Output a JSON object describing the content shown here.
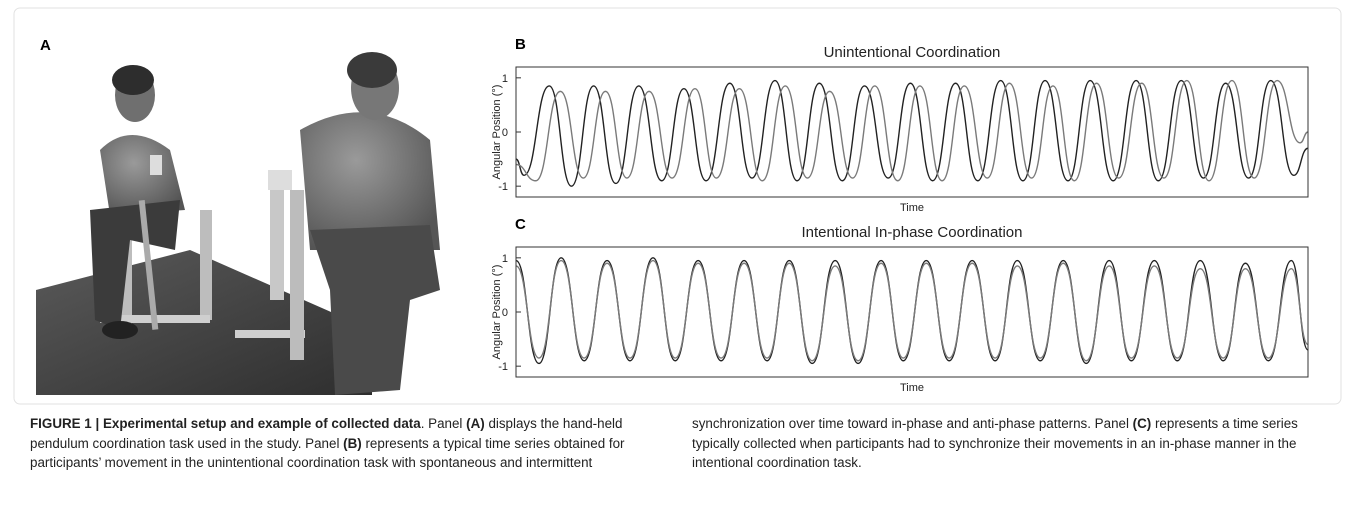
{
  "panel_a": {
    "label": "A"
  },
  "chart_data": [
    {
      "type": "line",
      "panel_label": "B",
      "title": "Unintentional Coordination",
      "xlabel": "Time",
      "ylabel": "Angular Position (°)",
      "xlim": [
        0,
        100
      ],
      "ylim": [
        -1.2,
        1.2
      ],
      "yticks": [
        1,
        0,
        -1
      ],
      "series": [
        {
          "color": "#222222",
          "x": [
            0,
            1,
            4.2,
            7,
            9.8,
            12.6,
            15.5,
            18.4,
            21.2,
            24,
            27,
            29.8,
            32.7,
            35.5,
            38.3,
            41.2,
            44,
            47,
            49.8,
            52.6,
            55.5,
            58.3,
            61.2,
            64,
            66.8,
            69.7,
            72.5,
            75.4,
            78.3,
            81.1,
            84,
            86.8,
            89.6,
            92.5,
            95.3,
            98.2,
            100
          ],
          "values": [
            -0.5,
            -0.8,
            0.85,
            -1.0,
            0.85,
            -0.95,
            0.85,
            -0.9,
            0.8,
            -0.9,
            0.9,
            -0.85,
            0.95,
            -0.9,
            0.9,
            -0.9,
            0.85,
            -0.85,
            0.9,
            -0.9,
            0.9,
            -0.9,
            0.95,
            -0.9,
            0.95,
            -0.9,
            0.95,
            -0.9,
            0.95,
            -0.9,
            0.95,
            -0.85,
            0.9,
            -0.85,
            0.95,
            -0.8,
            -0.3
          ]
        },
        {
          "color": "#7a7a7a",
          "x": [
            0,
            2.5,
            5.6,
            8.5,
            11.3,
            14,
            16.8,
            19.7,
            22.6,
            25.3,
            28.2,
            31.1,
            34,
            36.8,
            39.6,
            42.5,
            45.3,
            48.2,
            51,
            53.8,
            56.6,
            59.5,
            62.3,
            65.1,
            67.8,
            70.5,
            73.3,
            76.1,
            79,
            81.8,
            84.7,
            87.5,
            90.4,
            93.2,
            96.1,
            99,
            100
          ],
          "values": [
            -0.6,
            -0.9,
            0.75,
            -0.85,
            0.75,
            -0.85,
            0.75,
            -0.85,
            0.8,
            -0.85,
            0.8,
            -0.9,
            0.85,
            -0.85,
            0.75,
            -0.85,
            0.85,
            -0.9,
            0.85,
            -0.9,
            0.85,
            -0.85,
            0.9,
            -0.85,
            0.85,
            -0.9,
            0.9,
            -0.85,
            0.9,
            -0.85,
            0.95,
            -0.9,
            0.95,
            -0.85,
            0.95,
            -0.2,
            0.0
          ]
        }
      ]
    },
    {
      "type": "line",
      "panel_label": "C",
      "title": "Intentional In-phase Coordination",
      "xlabel": "Time",
      "ylabel": "Angular Position (°)",
      "xlim": [
        0,
        100
      ],
      "ylim": [
        -1.2,
        1.2
      ],
      "yticks": [
        1,
        0,
        -1
      ],
      "series": [
        {
          "color": "#222222",
          "x": [
            0,
            2.9,
            5.7,
            8.6,
            11.5,
            14.4,
            17.3,
            20.1,
            23,
            25.9,
            28.8,
            31.7,
            34.5,
            37.4,
            40.3,
            43.2,
            46.1,
            48.9,
            51.8,
            54.7,
            57.6,
            60.5,
            63.3,
            66.2,
            69.1,
            72,
            74.9,
            77.7,
            80.6,
            83.5,
            86.4,
            89.3,
            92.1,
            95,
            97.9,
            100
          ],
          "values": [
            0.95,
            -0.95,
            1.0,
            -0.9,
            0.95,
            -0.9,
            1.0,
            -0.9,
            0.95,
            -0.9,
            0.95,
            -0.9,
            0.95,
            -0.95,
            0.95,
            -0.95,
            0.95,
            -0.9,
            0.95,
            -0.9,
            0.95,
            -0.9,
            0.95,
            -0.9,
            0.95,
            -0.95,
            0.95,
            -0.9,
            0.95,
            -0.9,
            0.95,
            -0.9,
            0.9,
            -0.9,
            0.95,
            -0.7
          ]
        },
        {
          "color": "#7a7a7a",
          "x": [
            0,
            2.9,
            5.7,
            8.6,
            11.5,
            14.4,
            17.3,
            20.1,
            23,
            25.9,
            28.8,
            31.7,
            34.5,
            37.4,
            40.3,
            43.2,
            46.1,
            48.9,
            51.8,
            54.7,
            57.6,
            60.5,
            63.3,
            66.2,
            69.1,
            72,
            74.9,
            77.7,
            80.6,
            83.5,
            86.4,
            89.3,
            92.1,
            95,
            97.9,
            100
          ],
          "values": [
            0.85,
            -0.85,
            0.95,
            -0.85,
            0.9,
            -0.85,
            0.95,
            -0.85,
            0.9,
            -0.85,
            0.9,
            -0.85,
            0.9,
            -0.9,
            0.85,
            -0.9,
            0.9,
            -0.85,
            0.9,
            -0.85,
            0.9,
            -0.85,
            0.85,
            -0.85,
            0.9,
            -0.9,
            0.85,
            -0.85,
            0.85,
            -0.85,
            0.8,
            -0.85,
            0.8,
            -0.85,
            0.8,
            -0.6
          ]
        }
      ]
    }
  ],
  "caption": {
    "left": [
      {
        "text": "FIGURE 1 | Experimental setup and example of collected data",
        "bold": true
      },
      {
        "text": ". Panel ",
        "bold": false
      },
      {
        "text": "(A)",
        "bold": true
      },
      {
        "text": " displays the hand-held pendulum coordination task used in the study. Panel ",
        "bold": false
      },
      {
        "text": "(B)",
        "bold": true
      },
      {
        "text": " represents a typical time series obtained for participants’ movement in the unintentional coordination task with spontaneous and intermittent",
        "bold": false
      }
    ],
    "right": [
      {
        "text": "synchronization over time toward in-phase and anti-phase patterns. Panel ",
        "bold": false
      },
      {
        "text": "(C)",
        "bold": true
      },
      {
        "text": " represents a time series typically collected when participants had to synchronize their movements in an in-phase manner in the intentional coordination task.",
        "bold": false
      }
    ]
  }
}
